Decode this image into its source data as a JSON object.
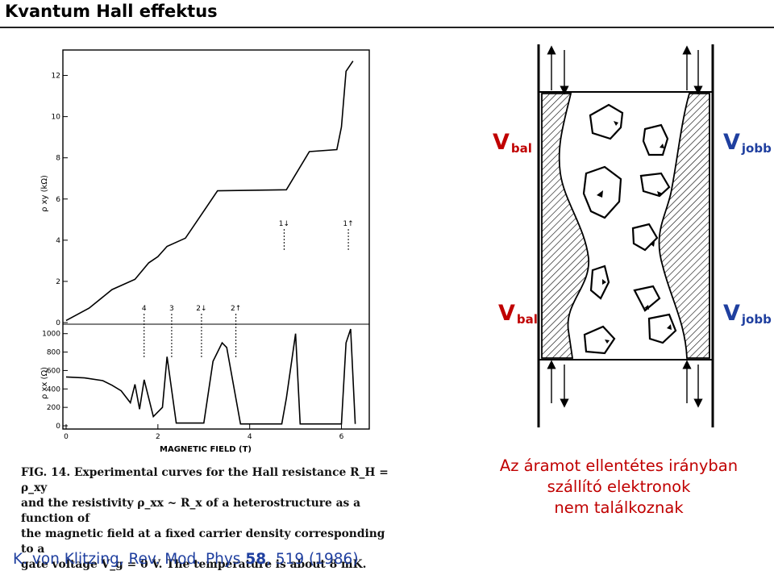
{
  "slide": {
    "title": "Kvantum Hall effektus",
    "note_lines": [
      "Az áramot ellentétes irányban",
      "szállító elektronok",
      "nem találkoznak"
    ],
    "reference_prefix": "K. von Klitzing,  Rev. Mod. Phys ",
    "reference_volume": "58",
    "reference_suffix": ", 519 (1986)"
  },
  "figure": {
    "caption_lines": [
      "FIG. 14.  Experimental curves for the Hall resistance R_H = ρ_xy",
      "and the resistivity ρ_xx ~ R_x  of a heterostructure as a function of",
      "the magnetic field at a fixed carrier density corresponding to a",
      "gate voltage  V_g = 0 V.  The temperature is about 8 mK."
    ],
    "ylabel_top": "ρ xy (kΩ)",
    "ylabel_bottom": "ρ xx (Ω)",
    "xlabel": "MAGNETIC FIELD   (T)"
  },
  "chart_data": [
    {
      "type": "line",
      "name_axis": "top",
      "ylabel": "ρ xy (kΩ)",
      "yticks": [
        "0",
        "2",
        "4",
        "6",
        "8",
        "10",
        "12"
      ],
      "ylim": [
        0,
        13
      ],
      "xlim": [
        0,
        6.5
      ],
      "filling_labels": [
        {
          "text": "4",
          "x": 1.7
        },
        {
          "text": "3",
          "x": 2.3
        },
        {
          "text": "2↓",
          "x": 2.95
        },
        {
          "text": "2↑",
          "x": 3.7
        },
        {
          "text": "1↓",
          "x": 4.75
        },
        {
          "text": "1↑",
          "x": 6.15
        }
      ],
      "points": [
        [
          0,
          0.1
        ],
        [
          0.5,
          0.7
        ],
        [
          1.0,
          1.6
        ],
        [
          1.5,
          2.1
        ],
        [
          1.8,
          2.9
        ],
        [
          2.0,
          3.2
        ],
        [
          2.2,
          3.7
        ],
        [
          2.6,
          4.1
        ],
        [
          3.3,
          6.4
        ],
        [
          4.8,
          6.45
        ],
        [
          5.3,
          8.3
        ],
        [
          5.9,
          8.4
        ],
        [
          6.0,
          9.5
        ],
        [
          6.1,
          12.2
        ],
        [
          6.25,
          12.7
        ]
      ]
    },
    {
      "type": "line",
      "name_axis": "bottom",
      "ylabel": "ρ xx (Ω)",
      "xlabel": "MAGNETIC FIELD   (T)",
      "yticks": [
        "0",
        "200",
        "400",
        "600",
        "800",
        "1000"
      ],
      "xticks": [
        "0",
        "2",
        "4",
        "6"
      ],
      "ylim": [
        0,
        1050
      ],
      "xlim": [
        0,
        6.5
      ],
      "points": [
        [
          0,
          530
        ],
        [
          0.4,
          520
        ],
        [
          0.8,
          490
        ],
        [
          1.0,
          440
        ],
        [
          1.2,
          380
        ],
        [
          1.4,
          250
        ],
        [
          1.5,
          450
        ],
        [
          1.6,
          180
        ],
        [
          1.7,
          500
        ],
        [
          1.9,
          100
        ],
        [
          2.1,
          200
        ],
        [
          2.2,
          750
        ],
        [
          2.4,
          30
        ],
        [
          3.0,
          30
        ],
        [
          3.2,
          700
        ],
        [
          3.4,
          900
        ],
        [
          3.5,
          850
        ],
        [
          3.8,
          20
        ],
        [
          4.7,
          20
        ],
        [
          4.8,
          300
        ],
        [
          5.0,
          1000
        ],
        [
          5.1,
          20
        ],
        [
          6.0,
          20
        ],
        [
          6.1,
          900
        ],
        [
          6.2,
          1050
        ],
        [
          6.3,
          20
        ]
      ]
    }
  ],
  "schematic": {
    "v_left_top": "V",
    "v_left_top_sub": "bal",
    "v_right_top": "V",
    "v_right_top_sub": "jobb",
    "v_left_bottom": "V",
    "v_left_bottom_sub": "bal",
    "v_right_bottom": "V",
    "v_right_bottom_sub": "jobb",
    "colors": {
      "label_red": "#c00000",
      "label_blue": "#1f3f9f"
    }
  }
}
